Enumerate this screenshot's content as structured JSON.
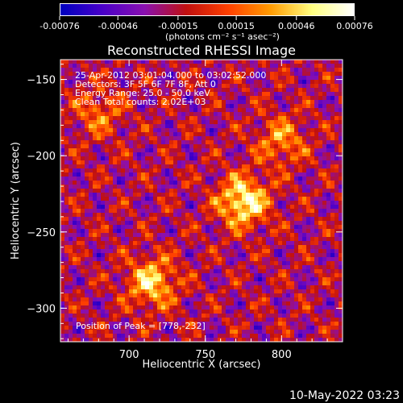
{
  "colorbar": {
    "ticks": [
      "-0.00076",
      "-0.00046",
      "-0.00015",
      "0.00015",
      "0.00046",
      "0.00076"
    ],
    "tick_values": [
      -0.00076,
      -0.00046,
      -0.00015,
      0.00015,
      0.00046,
      0.00076
    ],
    "range": [
      -0.00076,
      0.00076
    ],
    "units_label": "(photons cm⁻² s⁻¹ asec⁻²)",
    "colors": [
      "#0000c0",
      "#4a00c8",
      "#8a10b0",
      "#c01010",
      "#ff4000",
      "#ff9a00",
      "#ffff80",
      "#ffffff"
    ]
  },
  "plot": {
    "title": "Reconstructed RHESSI Image",
    "annotations": [
      "25-Apr-2012 03:01:04.000 to 03:02:52.000",
      "Detectors: 3F 5F 6F 7F 8F, Att 0",
      "Energy Range: 25.0 - 50.0 keV",
      "Clean     Total counts: 2.02E+03"
    ],
    "peak_label": "Position of Peak = [778,-232]",
    "footer": "10-May-2022 03:23"
  },
  "chart_data": {
    "type": "heatmap",
    "title": "Reconstructed RHESSI Image",
    "xlabel": "Heliocentric X (arcsec)",
    "ylabel": "Heliocentric Y (arcsec)",
    "xlim": [
      655,
      840
    ],
    "ylim": [
      -322,
      -137
    ],
    "x_ticks": [
      700,
      750,
      800
    ],
    "y_ticks": [
      -150,
      -200,
      -250,
      -300
    ],
    "color_range": [
      -0.00076,
      0.00076
    ],
    "peak": {
      "x": 778,
      "y": -232
    },
    "bright_sources": [
      {
        "x": 775,
        "y": -230,
        "rel": 1.0
      },
      {
        "x": 715,
        "y": -283,
        "rel": 0.8
      },
      {
        "x": 800,
        "y": -190,
        "rel": 0.55
      },
      {
        "x": 680,
        "y": -172,
        "rel": 0.45
      }
    ],
    "grid": false
  }
}
